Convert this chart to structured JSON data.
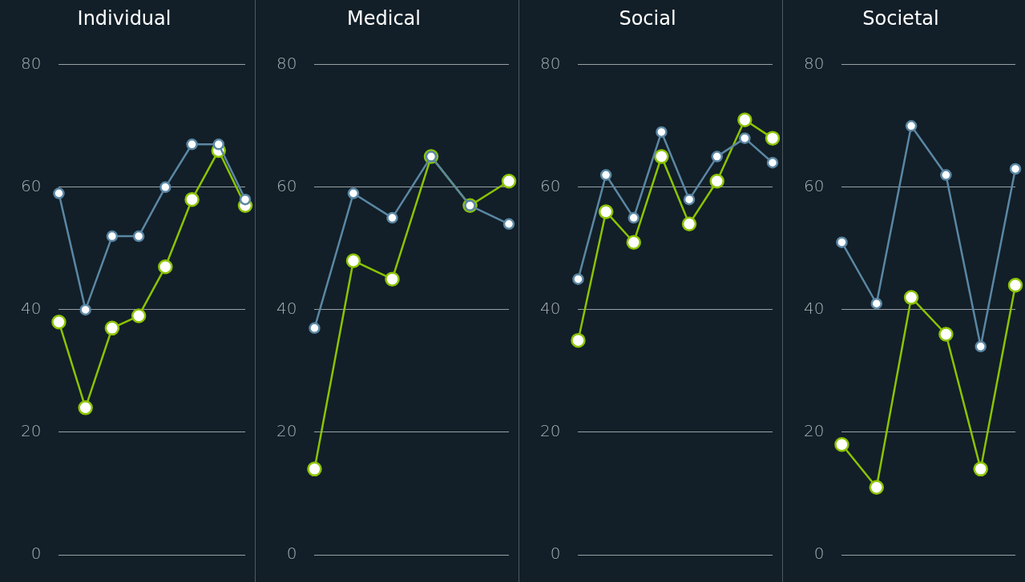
{
  "chart_data": [
    {
      "type": "line",
      "title": "Individual",
      "categories": [
        null,
        null,
        null,
        null,
        null,
        null,
        null,
        null
      ],
      "ylim": [
        0,
        80
      ],
      "yticks": [
        0,
        20,
        40,
        60,
        80
      ],
      "grid": "y",
      "marker": "circle",
      "series": [
        {
          "color": "#5b87a4",
          "values": [
            59,
            40,
            52,
            52,
            60,
            67,
            67,
            58
          ]
        },
        {
          "color": "#8cc400",
          "values": [
            38,
            24,
            37,
            39,
            47,
            58,
            66,
            57
          ]
        }
      ]
    },
    {
      "type": "line",
      "title": "Medical",
      "categories": [
        null,
        null,
        null,
        null,
        null,
        null
      ],
      "ylim": [
        0,
        80
      ],
      "yticks": [
        0,
        20,
        40,
        60,
        80
      ],
      "grid": "y",
      "marker": "circle",
      "series": [
        {
          "color": "#5b87a4",
          "values": [
            37,
            59,
            55,
            65,
            57,
            54
          ]
        },
        {
          "color": "#8cc400",
          "values": [
            14,
            48,
            45,
            65,
            57,
            61
          ]
        }
      ]
    },
    {
      "type": "line",
      "title": "Social",
      "categories": [
        null,
        null,
        null,
        null,
        null,
        null,
        null,
        null
      ],
      "ylim": [
        0,
        80
      ],
      "yticks": [
        0,
        20,
        40,
        60,
        80
      ],
      "grid": "y",
      "marker": "circle",
      "series": [
        {
          "color": "#5b87a4",
          "values": [
            45,
            62,
            55,
            69,
            58,
            65,
            68,
            64
          ]
        },
        {
          "color": "#8cc400",
          "values": [
            35,
            56,
            51,
            65,
            54,
            61,
            71,
            68
          ]
        }
      ]
    },
    {
      "type": "line",
      "title": "Societal",
      "categories": [
        null,
        null,
        null,
        null,
        null,
        null
      ],
      "ylim": [
        0,
        80
      ],
      "yticks": [
        0,
        20,
        40,
        60,
        80
      ],
      "grid": "y",
      "marker": "circle",
      "series": [
        {
          "color": "#5b87a4",
          "values": [
            51,
            41,
            70,
            62,
            34,
            63
          ]
        },
        {
          "color": "#8cc400",
          "values": [
            18,
            11,
            42,
            36,
            14,
            44
          ]
        }
      ]
    }
  ]
}
